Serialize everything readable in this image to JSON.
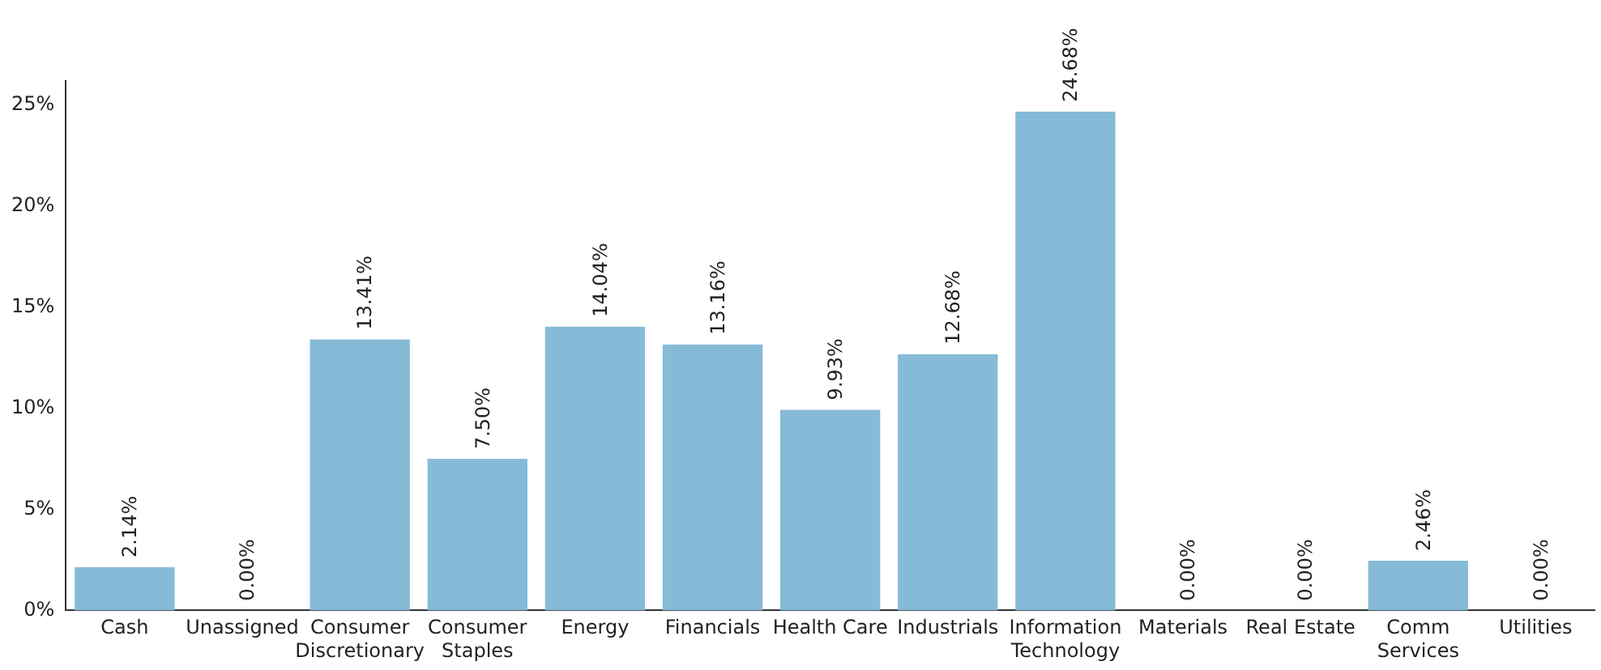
{
  "chart_data": {
    "type": "bar",
    "categories": [
      "Cash",
      "Unassigned",
      "Consumer\nDiscretionary",
      "Consumer\nStaples",
      "Energy",
      "Financials",
      "Health Care",
      "Industrials",
      "Information\nTechnology",
      "Materials",
      "Real Estate",
      "Comm\nServices",
      "Utilities"
    ],
    "values": [
      2.14,
      0,
      13.41,
      7.5,
      14.04,
      13.16,
      9.93,
      12.68,
      24.68,
      0,
      0,
      2.46,
      0
    ],
    "value_labels": [
      "2.14%",
      "0.00%",
      "13.41%",
      "7.50%",
      "14.04%",
      "13.16%",
      "9.93%",
      "12.68%",
      "24.68%",
      "0.00%",
      "0.00%",
      "2.46%",
      "0.00%"
    ],
    "color": "#86bbd8",
    "ylim": [
      0,
      26.2
    ],
    "yticks": [
      {
        "value": 0,
        "label": "0%"
      },
      {
        "value": 5,
        "label": "5%"
      },
      {
        "value": 10,
        "label": "10%"
      },
      {
        "value": 15,
        "label": "15%"
      },
      {
        "value": 20,
        "label": "20%"
      },
      {
        "value": 25,
        "label": "25%"
      }
    ],
    "grid": false,
    "legend": false
  }
}
